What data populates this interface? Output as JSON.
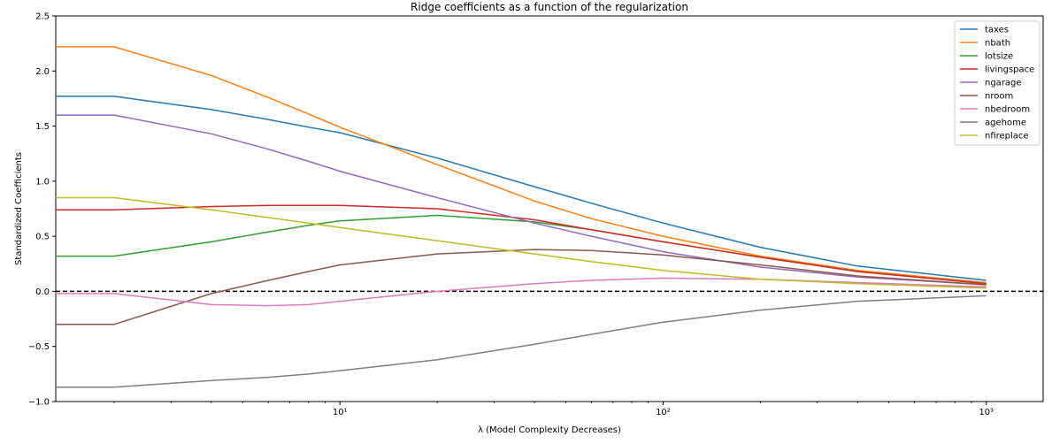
{
  "chart_data": {
    "type": "line",
    "title": "Ridge coefficients as a function of the regularization",
    "xlabel": "λ (Model Complexity Decreases)",
    "ylabel": "Standardized Coefficients",
    "xscale": "log",
    "xlim": [
      1.32,
      1500
    ],
    "ylim": [
      -1.0,
      2.5
    ],
    "yticks": [
      -1.0,
      -0.5,
      0.0,
      0.5,
      1.0,
      1.5,
      2.0,
      2.5
    ],
    "ytick_labels": [
      "−1.0",
      "−0.5",
      "0.0",
      "0.5",
      "1.0",
      "1.5",
      "2.0",
      "2.5"
    ],
    "xticks": [
      10,
      100,
      1000
    ],
    "xtick_labels": [
      "10¹",
      "10²",
      "10³"
    ],
    "grid": false,
    "legend_position": "top-right",
    "reference_line": {
      "y": 0,
      "style": "dashed",
      "color": "#000000"
    },
    "x": [
      1,
      2,
      4,
      6,
      8,
      10,
      20,
      40,
      60,
      100,
      200,
      400,
      1000
    ],
    "series": [
      {
        "name": "taxes",
        "color": "#1f77b4",
        "values": [
          1.77,
          1.77,
          1.65,
          1.56,
          1.49,
          1.44,
          1.21,
          0.95,
          0.8,
          0.62,
          0.4,
          0.23,
          0.1
        ]
      },
      {
        "name": "nbath",
        "color": "#ff7f0e",
        "values": [
          2.22,
          2.22,
          1.96,
          1.76,
          1.61,
          1.49,
          1.15,
          0.82,
          0.66,
          0.5,
          0.32,
          0.19,
          0.08
        ]
      },
      {
        "name": "lotsize",
        "color": "#2ca02c",
        "values": [
          0.32,
          0.32,
          0.45,
          0.54,
          0.6,
          0.64,
          0.69,
          0.63,
          0.56,
          0.45,
          0.31,
          0.18,
          0.07
        ]
      },
      {
        "name": "livingspace",
        "color": "#d62728",
        "values": [
          0.74,
          0.74,
          0.77,
          0.78,
          0.78,
          0.78,
          0.75,
          0.65,
          0.56,
          0.45,
          0.31,
          0.18,
          0.07
        ]
      },
      {
        "name": "ngarage",
        "color": "#9467bd",
        "values": [
          1.6,
          1.6,
          1.43,
          1.29,
          1.18,
          1.09,
          0.85,
          0.62,
          0.5,
          0.36,
          0.22,
          0.13,
          0.06
        ]
      },
      {
        "name": "nroom",
        "color": "#8c564b",
        "values": [
          -0.3,
          -0.3,
          -0.02,
          0.1,
          0.18,
          0.24,
          0.34,
          0.38,
          0.37,
          0.33,
          0.24,
          0.14,
          0.06
        ]
      },
      {
        "name": "nbedroom",
        "color": "#e377c2",
        "values": [
          -0.02,
          -0.02,
          -0.12,
          -0.13,
          -0.12,
          -0.09,
          0.0,
          0.07,
          0.1,
          0.12,
          0.11,
          0.08,
          0.04
        ]
      },
      {
        "name": "agehome",
        "color": "#7f7f7f",
        "values": [
          -0.87,
          -0.87,
          -0.81,
          -0.78,
          -0.75,
          -0.72,
          -0.62,
          -0.48,
          -0.39,
          -0.28,
          -0.17,
          -0.09,
          -0.04
        ]
      },
      {
        "name": "nfireplace",
        "color": "#bcbd22",
        "values": [
          0.85,
          0.85,
          0.74,
          0.67,
          0.62,
          0.58,
          0.46,
          0.34,
          0.27,
          0.19,
          0.11,
          0.07,
          0.03
        ]
      }
    ]
  }
}
